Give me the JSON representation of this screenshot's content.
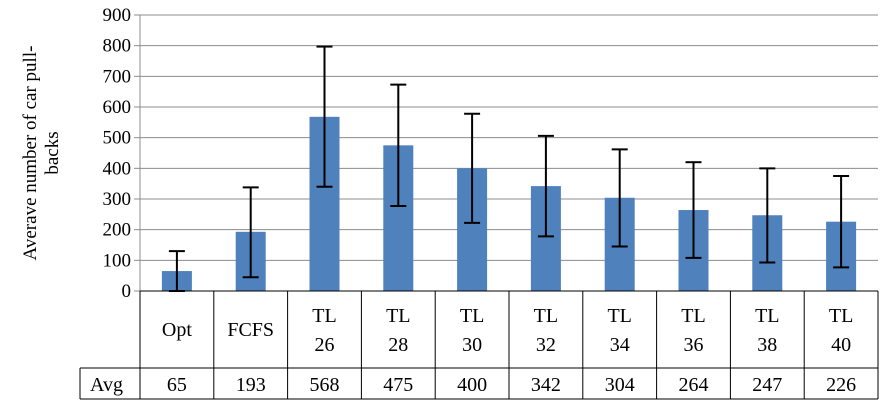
{
  "chart_data": {
    "type": "bar",
    "title": "",
    "ylabel": "Averave number of car pull-backs",
    "ylabel_lines": [
      "Averave number of car pull-",
      "backs"
    ],
    "ylim": [
      0,
      900
    ],
    "yticks": [
      0,
      100,
      200,
      300,
      400,
      500,
      600,
      700,
      800,
      900
    ],
    "grid": "horizontal",
    "categories": [
      "Opt",
      "FCFS",
      "TL 26",
      "TL 28",
      "TL 30",
      "TL 32",
      "TL 34",
      "TL 36",
      "TL 38",
      "TL 40"
    ],
    "category_lines": [
      [
        "Opt"
      ],
      [
        "FCFS"
      ],
      [
        "TL",
        "26"
      ],
      [
        "TL",
        "28"
      ],
      [
        "TL",
        "30"
      ],
      [
        "TL",
        "32"
      ],
      [
        "TL",
        "34"
      ],
      [
        "TL",
        "36"
      ],
      [
        "TL",
        "38"
      ],
      [
        "TL",
        "40"
      ]
    ],
    "values": [
      65,
      193,
      568,
      475,
      400,
      342,
      304,
      264,
      247,
      226
    ],
    "error_low": [
      0,
      45,
      340,
      277,
      222,
      178,
      145,
      108,
      93,
      77
    ],
    "error_high": [
      130,
      338,
      797,
      673,
      578,
      506,
      462,
      420,
      400,
      375
    ],
    "bar_color": "#4f81bd",
    "table": {
      "row_label": "Avg",
      "values": [
        "65",
        "193",
        "568",
        "475",
        "400",
        "342",
        "304",
        "264",
        "247",
        "226"
      ]
    }
  }
}
